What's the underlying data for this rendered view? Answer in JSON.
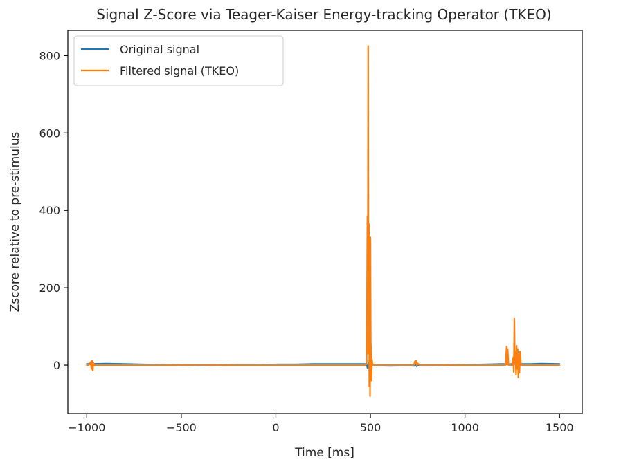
{
  "chart_data": {
    "type": "line",
    "title": "Signal Z-Score via Teager-Kaiser Energy-tracking Operator (TKEO)",
    "xlabel": "Time [ms]",
    "ylabel": "Zscore relative to pre-stimulus",
    "xlim": [
      -1100,
      1620
    ],
    "ylim": [
      -125,
      865
    ],
    "xticks": [
      -1000,
      -500,
      0,
      500,
      1000,
      1500
    ],
    "yticks": [
      0,
      200,
      400,
      600,
      800
    ],
    "xtick_labels": [
      "−1000",
      "−500",
      "0",
      "500",
      "1000",
      "1500"
    ],
    "ytick_labels": [
      "0",
      "200",
      "400",
      "600",
      "800"
    ],
    "grid": false,
    "legend_position": "top-left",
    "series": [
      {
        "name": "Original signal",
        "color": "#1f77b4",
        "x": [
          -1000,
          -900,
          -800,
          -700,
          -600,
          -500,
          -400,
          -300,
          -200,
          -100,
          0,
          100,
          200,
          300,
          400,
          470,
          480,
          485,
          490,
          495,
          500,
          505,
          510,
          520,
          560,
          600,
          700,
          735,
          740,
          745,
          750,
          800,
          900,
          1000,
          1100,
          1200,
          1230,
          1260,
          1270,
          1280,
          1290,
          1300,
          1350,
          1400,
          1500
        ],
        "y": [
          3,
          4,
          3,
          2,
          1,
          0,
          -1,
          0,
          1,
          1,
          2,
          2,
          3,
          3,
          3,
          3,
          2,
          -8,
          6,
          -14,
          4,
          -6,
          2,
          -1,
          -1,
          -2,
          -1,
          -2,
          4,
          -3,
          -1,
          -1,
          0,
          1,
          2,
          3,
          2,
          4,
          1,
          6,
          0,
          3,
          3,
          4,
          3
        ]
      },
      {
        "name": "Filtered signal (TKEO)",
        "color": "#ff7f0e",
        "x": [
          -1000,
          -990,
          -985,
          -980,
          -975,
          -972,
          -968,
          -965,
          -960,
          -950,
          -900,
          -800,
          -700,
          -600,
          -500,
          -400,
          -300,
          -200,
          -100,
          0,
          100,
          200,
          300,
          400,
          470,
          480,
          484,
          486,
          488,
          490,
          492,
          494,
          496,
          498,
          500,
          502,
          504,
          506,
          508,
          510,
          515,
          520,
          540,
          600,
          700,
          730,
          735,
          738,
          742,
          746,
          750,
          760,
          800,
          900,
          1000,
          1100,
          1200,
          1215,
          1220,
          1223,
          1226,
          1230,
          1240,
          1250,
          1255,
          1258,
          1261,
          1264,
          1267,
          1270,
          1273,
          1276,
          1279,
          1282,
          1285,
          1288,
          1291,
          1295,
          1300,
          1320,
          1400,
          1500
        ],
        "y": [
          0,
          0,
          2,
          8,
          -10,
          12,
          -14,
          6,
          0,
          0,
          0,
          0,
          0,
          0,
          0,
          0,
          0,
          0,
          0,
          0,
          0,
          0,
          0,
          0,
          0,
          2,
          385,
          30,
          825,
          100,
          365,
          -55,
          220,
          -80,
          330,
          60,
          40,
          -40,
          15,
          5,
          0,
          0,
          0,
          0,
          0,
          0,
          10,
          4,
          12,
          0,
          5,
          0,
          0,
          0,
          0,
          0,
          0,
          0,
          48,
          2,
          42,
          0,
          0,
          0,
          20,
          -18,
          120,
          5,
          35,
          -25,
          50,
          -10,
          42,
          -32,
          28,
          -20,
          35,
          8,
          0,
          0,
          0,
          0
        ]
      }
    ]
  }
}
